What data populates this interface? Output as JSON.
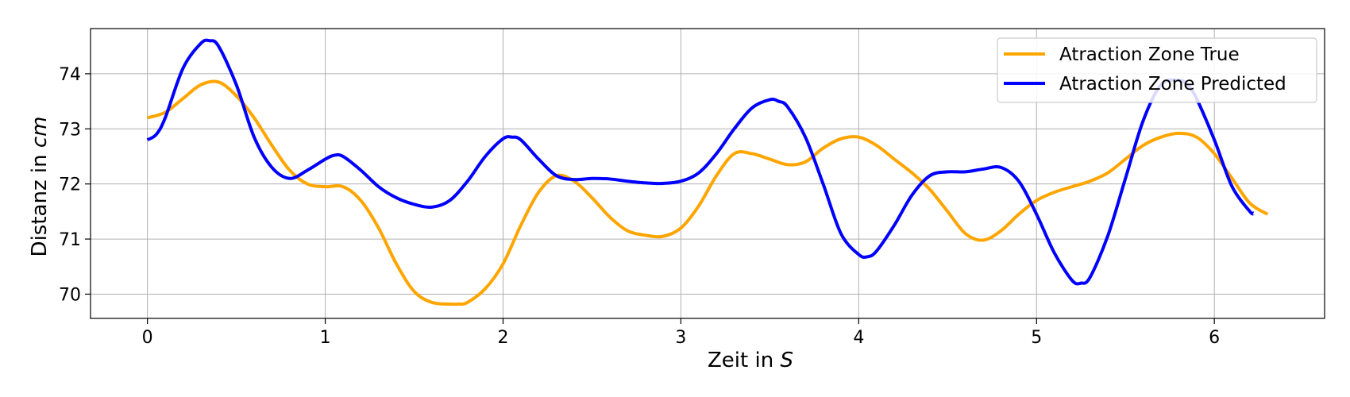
{
  "chart_data": {
    "type": "line",
    "title": "",
    "xlabel": "Zeit in",
    "xlabel_unit": "S",
    "ylabel": "Distanz in",
    "ylabel_unit": "cm",
    "xlim": [
      -0.32,
      6.62
    ],
    "ylim": [
      69.56,
      74.82
    ],
    "xticks": [
      0,
      1,
      2,
      3,
      4,
      5,
      6
    ],
    "xtick_labels": [
      "0",
      "1",
      "2",
      "3",
      "4",
      "5",
      "6"
    ],
    "yticks": [
      70,
      71,
      72,
      73,
      74
    ],
    "ytick_labels": [
      "70",
      "71",
      "72",
      "73",
      "74"
    ],
    "grid": true,
    "legend_position": "top-right",
    "series": [
      {
        "name": "Atraction Zone True",
        "color": "#FFA500",
        "x": [
          0,
          0.1,
          0.2,
          0.3,
          0.4,
          0.5,
          0.6,
          0.7,
          0.8,
          0.9,
          1.0,
          1.1,
          1.2,
          1.3,
          1.4,
          1.5,
          1.6,
          1.7,
          1.75,
          1.8,
          1.9,
          2.0,
          2.1,
          2.2,
          2.3,
          2.4,
          2.5,
          2.6,
          2.7,
          2.8,
          2.9,
          3.0,
          3.1,
          3.2,
          3.3,
          3.4,
          3.5,
          3.6,
          3.7,
          3.8,
          3.9,
          4.0,
          4.1,
          4.2,
          4.3,
          4.4,
          4.5,
          4.6,
          4.7,
          4.8,
          4.9,
          5.0,
          5.1,
          5.2,
          5.3,
          5.4,
          5.5,
          5.6,
          5.7,
          5.8,
          5.9,
          6.0,
          6.1,
          6.2,
          6.3
        ],
        "y": [
          73.2,
          73.3,
          73.55,
          73.8,
          73.85,
          73.6,
          73.2,
          72.7,
          72.25,
          72.0,
          71.95,
          71.95,
          71.7,
          71.2,
          70.55,
          70.05,
          69.85,
          69.82,
          69.82,
          69.85,
          70.1,
          70.55,
          71.25,
          71.85,
          72.15,
          72.05,
          71.75,
          71.4,
          71.15,
          71.07,
          71.05,
          71.2,
          71.6,
          72.15,
          72.55,
          72.55,
          72.45,
          72.35,
          72.4,
          72.65,
          72.82,
          72.85,
          72.7,
          72.45,
          72.2,
          71.9,
          71.5,
          71.1,
          70.98,
          71.15,
          71.45,
          71.7,
          71.85,
          71.95,
          72.05,
          72.2,
          72.45,
          72.7,
          72.85,
          72.92,
          72.85,
          72.55,
          72.1,
          71.65,
          71.45
        ]
      },
      {
        "name": "Atraction Zone Predicted",
        "color": "#0000FF",
        "x": [
          0,
          0.05,
          0.1,
          0.2,
          0.3,
          0.35,
          0.4,
          0.5,
          0.6,
          0.7,
          0.8,
          0.9,
          1.0,
          1.05,
          1.1,
          1.2,
          1.3,
          1.4,
          1.5,
          1.6,
          1.7,
          1.8,
          1.9,
          2.0,
          2.05,
          2.1,
          2.2,
          2.3,
          2.4,
          2.5,
          2.6,
          2.7,
          2.8,
          2.9,
          3.0,
          3.1,
          3.2,
          3.3,
          3.4,
          3.5,
          3.55,
          3.6,
          3.7,
          3.8,
          3.9,
          4.0,
          4.05,
          4.1,
          4.2,
          4.3,
          4.4,
          4.5,
          4.6,
          4.7,
          4.8,
          4.9,
          5.0,
          5.1,
          5.2,
          5.25,
          5.3,
          5.4,
          5.5,
          5.6,
          5.7,
          5.8,
          5.85,
          5.9,
          6.0,
          6.1,
          6.2,
          6.22
        ],
        "y": [
          72.8,
          72.9,
          73.2,
          74.1,
          74.55,
          74.6,
          74.5,
          73.8,
          72.85,
          72.3,
          72.1,
          72.25,
          72.45,
          72.52,
          72.5,
          72.25,
          71.95,
          71.75,
          71.63,
          71.58,
          71.7,
          72.05,
          72.5,
          72.82,
          72.85,
          72.8,
          72.45,
          72.15,
          72.08,
          72.1,
          72.09,
          72.05,
          72.02,
          72.01,
          72.05,
          72.2,
          72.55,
          73.0,
          73.38,
          73.53,
          73.5,
          73.4,
          72.85,
          72.0,
          71.1,
          70.72,
          70.68,
          70.78,
          71.25,
          71.8,
          72.15,
          72.22,
          72.22,
          72.27,
          72.3,
          72.05,
          71.45,
          70.75,
          70.25,
          70.2,
          70.3,
          71.05,
          72.1,
          73.15,
          73.8,
          73.88,
          73.8,
          73.55,
          72.8,
          71.95,
          71.5,
          71.47
        ]
      }
    ]
  }
}
